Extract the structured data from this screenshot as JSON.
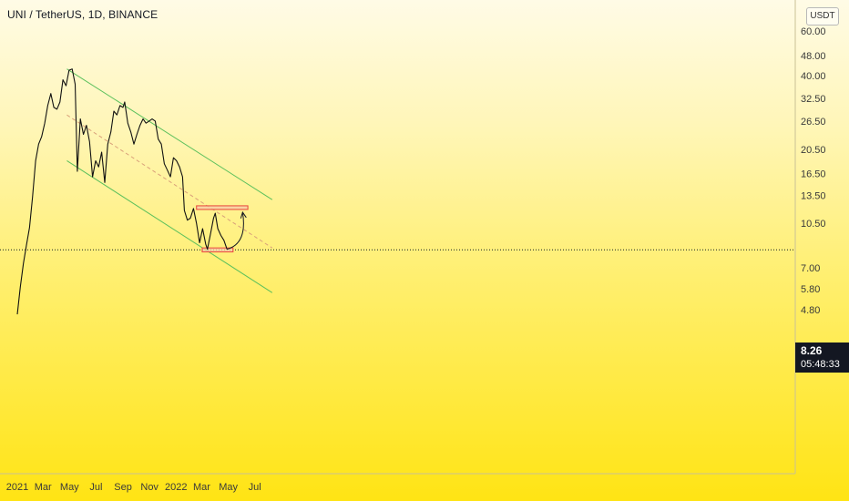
{
  "header": {
    "symbol_title": "UNI / TetherUS, 1D, BINANCE"
  },
  "price_scale": {
    "currency": "USDT"
  },
  "last_price": {
    "price": "8.26",
    "countdown": "05:48:33"
  },
  "colors": {
    "price_line": "#111111",
    "channel": "#5cc05c",
    "zone_fill": "#f7c9a9",
    "zone_border": "#e8453c",
    "axis_text": "#3a3a3a",
    "badge_bg": "#131722"
  },
  "chart_data": {
    "type": "line",
    "title": "UNI / TetherUS, 1D, BINANCE",
    "xlabel": "",
    "ylabel": "",
    "y_scale": "log",
    "grid": false,
    "x_ticks": [
      "2021",
      "Mar",
      "May",
      "Jul",
      "Sep",
      "Nov",
      "2022",
      "Mar",
      "May",
      "Jul"
    ],
    "y_ticks": [
      "60.00",
      "48.00",
      "40.00",
      "32.50",
      "26.50",
      "20.50",
      "16.50",
      "13.50",
      "10.50",
      "8.26",
      "7.00",
      "5.80",
      "4.80"
    ],
    "series": [
      {
        "values": [
          [
            "2021-01-01",
            4.6
          ],
          [
            "2021-01-08",
            5.9
          ],
          [
            "2021-01-15",
            7.3
          ],
          [
            "2021-01-22",
            8.6
          ],
          [
            "2021-01-29",
            10.1
          ],
          [
            "2021-02-05",
            13.3
          ],
          [
            "2021-02-12",
            18.5
          ],
          [
            "2021-02-19",
            21.5
          ],
          [
            "2021-02-26",
            23.0
          ],
          [
            "2021-03-05",
            26.0
          ],
          [
            "2021-03-12",
            30.5
          ],
          [
            "2021-03-19",
            34.0
          ],
          [
            "2021-03-26",
            30.0
          ],
          [
            "2021-04-02",
            29.5
          ],
          [
            "2021-04-09",
            31.5
          ],
          [
            "2021-04-16",
            38.5
          ],
          [
            "2021-04-23",
            36.5
          ],
          [
            "2021-04-30",
            42.0
          ],
          [
            "2021-05-07",
            42.5
          ],
          [
            "2021-05-14",
            37.0
          ],
          [
            "2021-05-19",
            16.8
          ],
          [
            "2021-05-26",
            27.0
          ],
          [
            "2021-06-02",
            23.5
          ],
          [
            "2021-06-09",
            25.5
          ],
          [
            "2021-06-16",
            22.0
          ],
          [
            "2021-06-23",
            16.0
          ],
          [
            "2021-06-30",
            18.5
          ],
          [
            "2021-07-07",
            17.5
          ],
          [
            "2021-07-14",
            20.0
          ],
          [
            "2021-07-21",
            15.2
          ],
          [
            "2021-07-28",
            21.5
          ],
          [
            "2021-08-04",
            24.0
          ],
          [
            "2021-08-11",
            29.0
          ],
          [
            "2021-08-18",
            28.0
          ],
          [
            "2021-08-25",
            30.5
          ],
          [
            "2021-09-01",
            30.0
          ],
          [
            "2021-09-05",
            31.5
          ],
          [
            "2021-09-12",
            26.0
          ],
          [
            "2021-09-19",
            24.0
          ],
          [
            "2021-09-26",
            21.5
          ],
          [
            "2021-10-03",
            23.5
          ],
          [
            "2021-10-10",
            25.5
          ],
          [
            "2021-10-17",
            27.0
          ],
          [
            "2021-10-24",
            26.0
          ],
          [
            "2021-10-31",
            26.5
          ],
          [
            "2021-11-07",
            27.0
          ],
          [
            "2021-11-14",
            26.5
          ],
          [
            "2021-11-21",
            22.5
          ],
          [
            "2021-11-28",
            21.5
          ],
          [
            "2021-12-05",
            18.0
          ],
          [
            "2021-12-12",
            17.0
          ],
          [
            "2021-12-19",
            16.0
          ],
          [
            "2021-12-26",
            19.0
          ],
          [
            "2022-01-02",
            18.5
          ],
          [
            "2022-01-09",
            17.5
          ],
          [
            "2022-01-16",
            16.0
          ],
          [
            "2022-01-20",
            11.8
          ],
          [
            "2022-01-27",
            10.8
          ],
          [
            "2022-02-03",
            11.0
          ],
          [
            "2022-02-10",
            12.0
          ],
          [
            "2022-02-17",
            10.5
          ],
          [
            "2022-02-24",
            8.8
          ],
          [
            "2022-03-03",
            10.0
          ],
          [
            "2022-03-10",
            8.7
          ],
          [
            "2022-03-14",
            8.3
          ],
          [
            "2022-03-21",
            9.5
          ],
          [
            "2022-03-28",
            11.0
          ],
          [
            "2022-04-01",
            11.5
          ],
          [
            "2022-04-07",
            10.0
          ],
          [
            "2022-04-14",
            9.4
          ],
          [
            "2022-04-21",
            9.0
          ],
          [
            "2022-04-28",
            8.3
          ]
        ]
      }
    ],
    "channel_lines": [
      {
        "from": [
          "2021-04-25",
          42.5
        ],
        "to": [
          "2022-08-10",
          13.0
        ]
      },
      {
        "from": [
          "2021-04-25",
          18.5
        ],
        "to": [
          "2022-08-10",
          5.6
        ]
      },
      {
        "from": [
          "2021-04-25",
          28.0
        ],
        "to": [
          "2022-08-10",
          8.4
        ],
        "style": "dashed"
      }
    ],
    "zones": [
      {
        "x": [
          "2022-02-17",
          "2022-06-15"
        ],
        "y": [
          11.9,
          12.3
        ]
      },
      {
        "x": [
          "2022-03-02",
          "2022-05-12"
        ],
        "y": [
          8.1,
          8.4
        ]
      }
    ],
    "projection": {
      "from": [
        "2022-04-28",
        8.3
      ],
      "to": [
        "2022-06-03",
        11.6
      ]
    },
    "last_price_line": 8.26
  }
}
